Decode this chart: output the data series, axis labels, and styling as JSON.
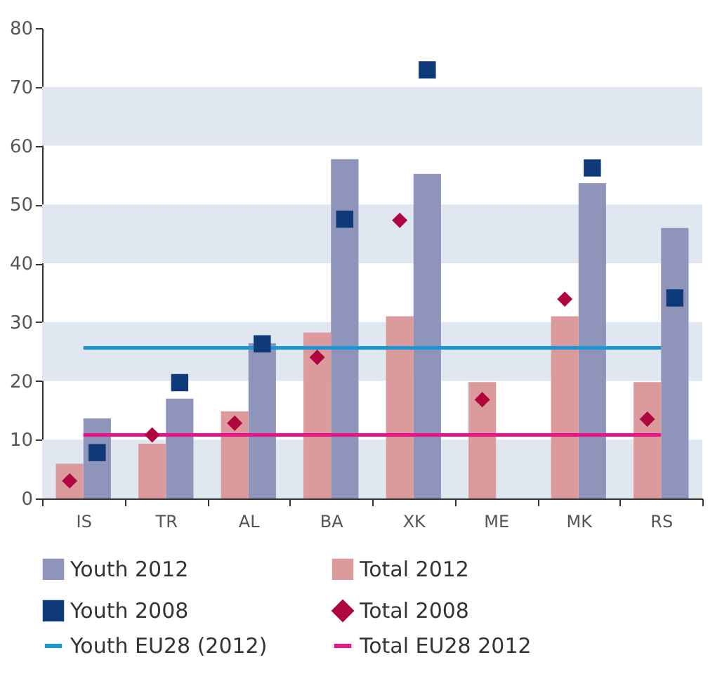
{
  "chart_data": {
    "type": "bar",
    "categories": [
      "IS",
      "TR",
      "AL",
      "BA",
      "XK",
      "ME",
      "MK",
      "RS"
    ],
    "series": [
      {
        "name": "Youth 2012",
        "color": "#8f94bb",
        "values": [
          13.6,
          17,
          26.4,
          57.7,
          55.2,
          null,
          53.6,
          46
        ]
      },
      {
        "name": "Total 2012",
        "color": "#db9a9b",
        "values": [
          5.9,
          9.3,
          14.8,
          28.2,
          31,
          19.8,
          31,
          19.8
        ]
      },
      {
        "name": "Youth 2008",
        "type": "scatter",
        "marker": "square",
        "color": "#0f3a7a",
        "values": [
          7.8,
          19.7,
          26.3,
          47.5,
          72.9,
          null,
          56.2,
          34.1
        ]
      },
      {
        "name": "Total 2008",
        "type": "scatter",
        "marker": "diamond",
        "color": "#b0063f",
        "values": [
          3,
          10.8,
          12.8,
          24,
          47.3,
          16.8,
          33.9,
          13.5
        ]
      },
      {
        "name": "Youth EU28 (2012)",
        "type": "line",
        "color": "#1a96d4",
        "values": [
          25.6,
          25.6,
          25.6,
          25.6,
          25.6,
          25.6,
          25.6,
          25.6
        ]
      },
      {
        "name": "Total EU28 2012",
        "type": "line",
        "color": "#e8148a",
        "values": [
          10.8,
          10.8,
          10.8,
          10.8,
          10.8,
          10.8,
          10.8,
          10.8
        ]
      }
    ],
    "ylim": [
      0,
      80
    ],
    "yticks": [
      0,
      10,
      20,
      30,
      40,
      50,
      60,
      70,
      80
    ],
    "bands": [
      {
        "axis": "y",
        "from": 0,
        "to": 10,
        "color": "#e1e7f1"
      },
      {
        "axis": "y",
        "from": 20,
        "to": 30,
        "color": "#e1e7f1"
      },
      {
        "axis": "y",
        "from": 40,
        "to": 50,
        "color": "#e1e7f1"
      },
      {
        "axis": "y",
        "from": 60,
        "to": 70,
        "color": "#e1e7f1"
      }
    ],
    "grid": false,
    "legend": "bottom"
  }
}
